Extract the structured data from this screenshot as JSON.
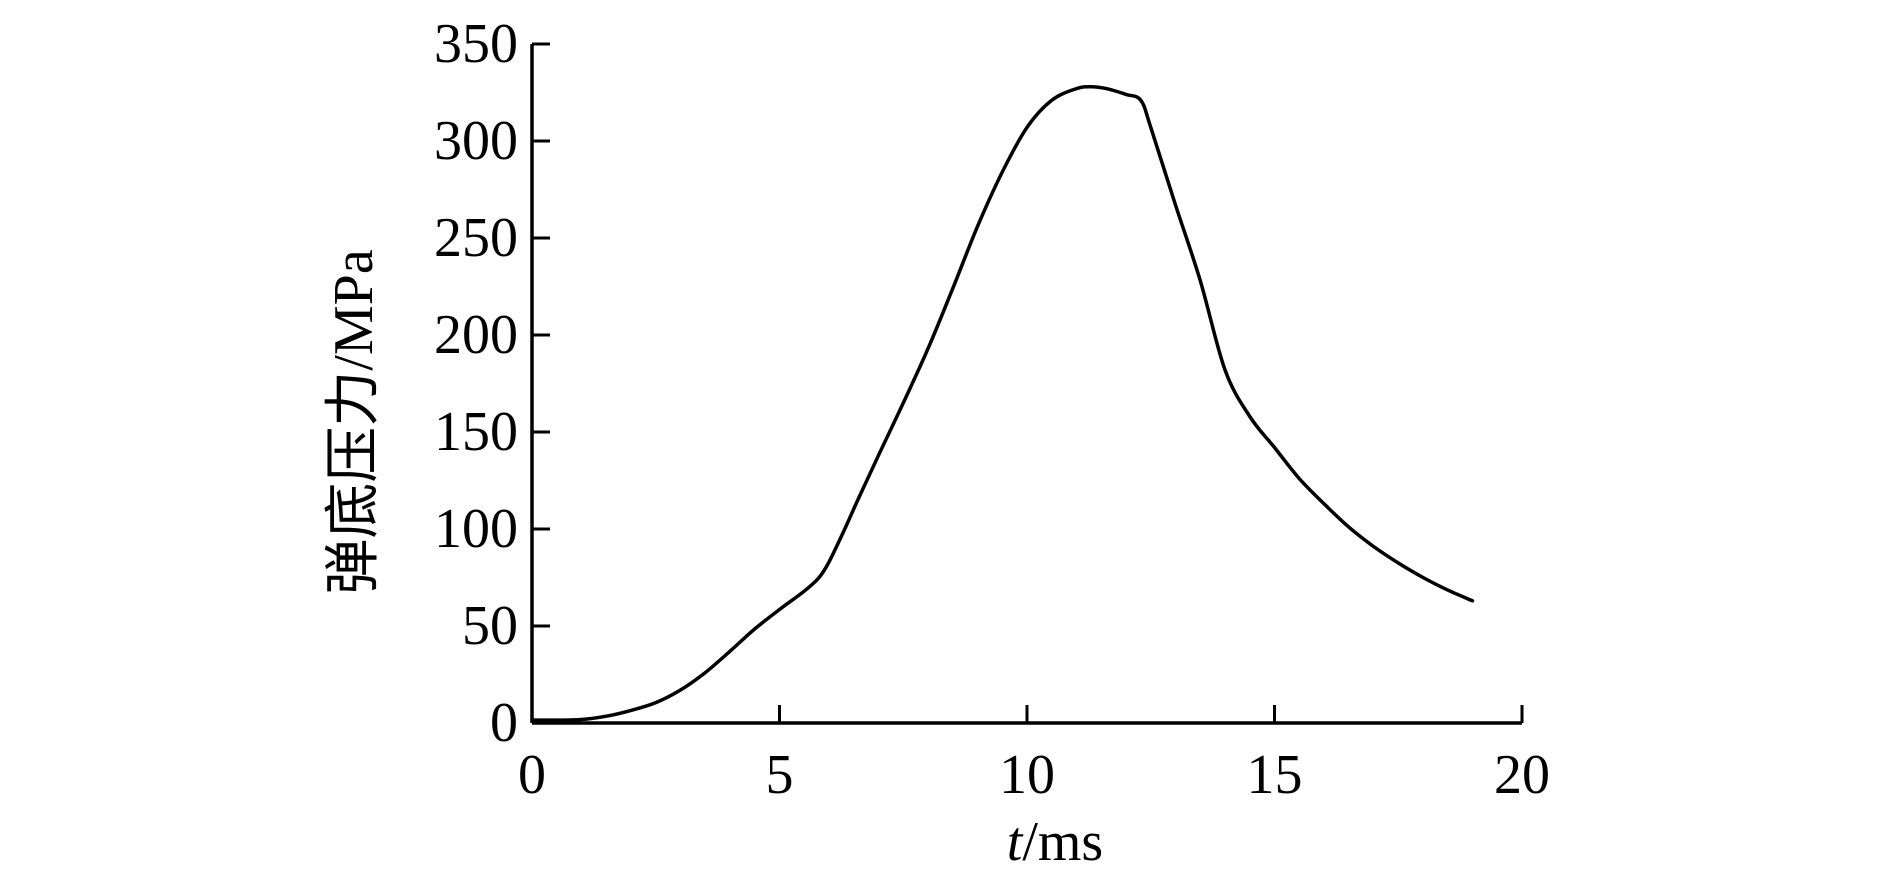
{
  "chart_data": {
    "type": "line",
    "title": "",
    "xlabel_italic": "t",
    "xlabel_unit": "/ms",
    "ylabel": "弹底压力/MPa",
    "xlim": [
      0,
      20
    ],
    "ylim": [
      0,
      350
    ],
    "xticks": [
      0,
      5,
      10,
      15,
      20
    ],
    "yticks": [
      0,
      50,
      100,
      150,
      200,
      250,
      300,
      350
    ],
    "grid": false,
    "legend": "none",
    "line_color": "#000000",
    "series": [
      {
        "x": [
          0,
          0.5,
          1.0,
          1.5,
          2.0,
          2.5,
          3.0,
          3.5,
          4.0,
          4.5,
          5.0,
          5.5,
          5.8,
          6.0,
          6.3,
          6.6,
          7.0,
          7.5,
          8.0,
          8.5,
          9.0,
          9.5,
          10.0,
          10.5,
          11.0,
          11.3,
          11.6,
          12.0,
          12.3,
          12.5,
          13.0,
          13.5,
          14.0,
          14.5,
          15.0,
          15.5,
          16.0,
          16.5,
          17.0,
          17.5,
          18.0,
          18.5,
          19.0
        ],
        "values": [
          1.5,
          1.5,
          1.8,
          3.5,
          6.5,
          10.5,
          17.0,
          26.0,
          37.0,
          48.5,
          58.5,
          68.0,
          75.0,
          83.0,
          99.0,
          116.0,
          138.0,
          165.0,
          193.0,
          224.0,
          256.0,
          284.0,
          307.0,
          321.0,
          327.0,
          328.0,
          327.0,
          324.0,
          321.0,
          307.0,
          267.0,
          228.0,
          182.0,
          158.0,
          142.0,
          126.0,
          113.0,
          101.0,
          91.0,
          82.5,
          75.0,
          68.5,
          63.0
        ]
      }
    ]
  }
}
